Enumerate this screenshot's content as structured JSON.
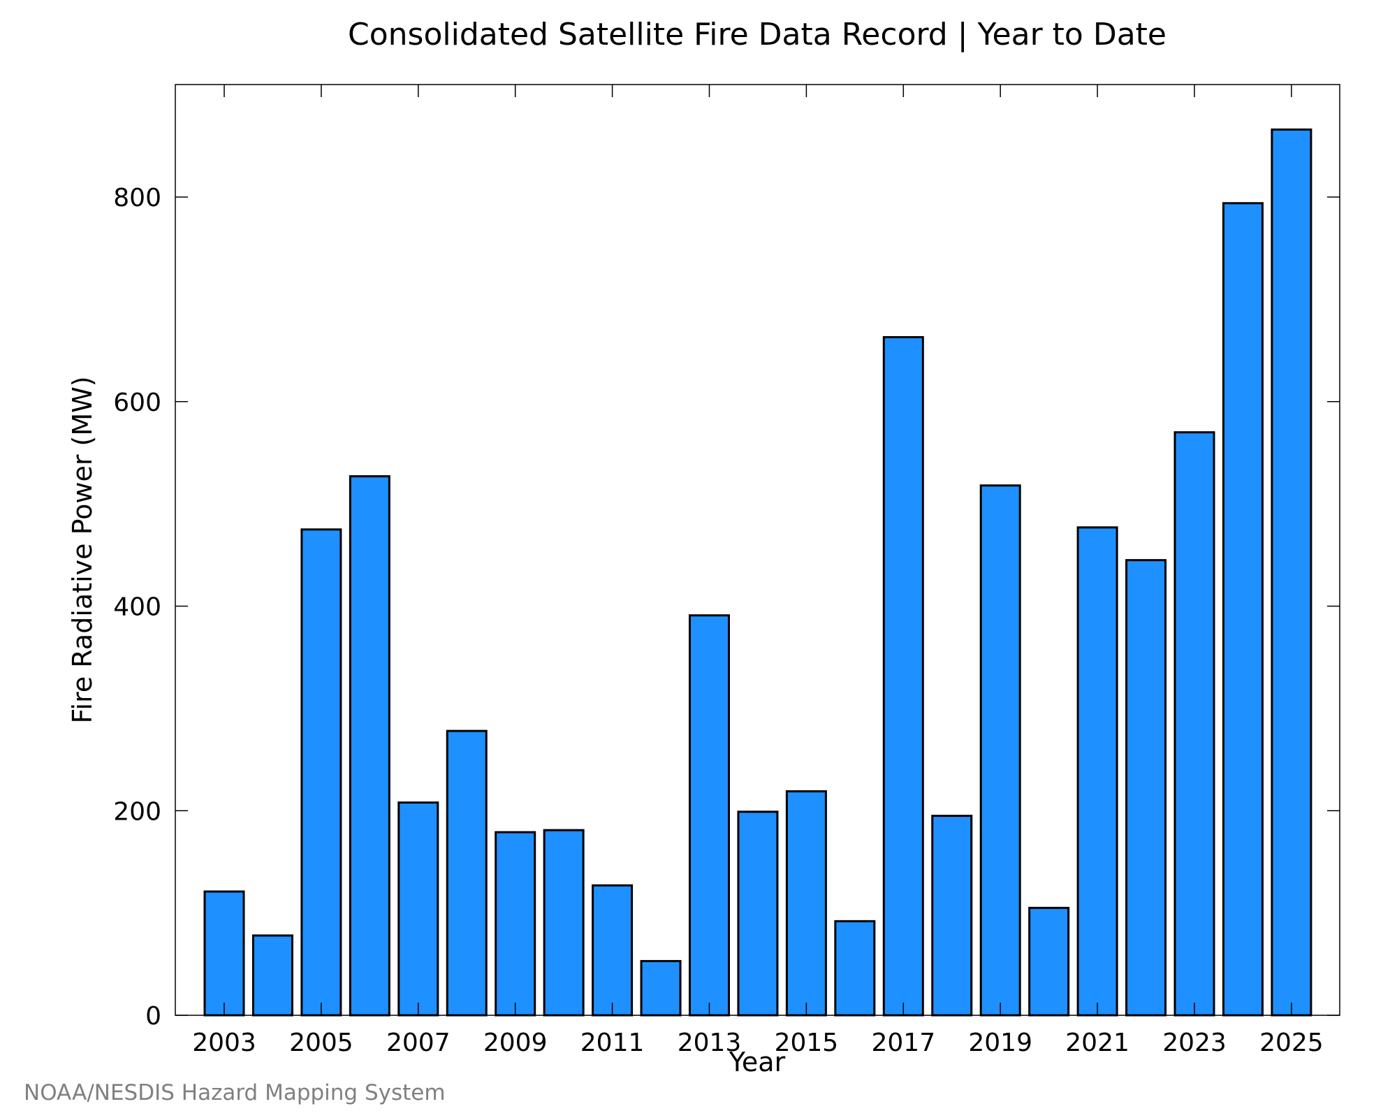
{
  "chart_data": {
    "type": "bar",
    "title": "Consolidated Satellite Fire Data Record | Year to Date",
    "xlabel": "Year",
    "ylabel": "Fire Radiative Power (MW)",
    "categories": [
      "2003",
      "2004",
      "2005",
      "2006",
      "2007",
      "2008",
      "2009",
      "2010",
      "2011",
      "2012",
      "2013",
      "2014",
      "2015",
      "2016",
      "2017",
      "2018",
      "2019",
      "2020",
      "2021",
      "2022",
      "2023",
      "2024",
      "2025"
    ],
    "values": [
      121,
      78,
      475,
      527,
      208,
      278,
      179,
      181,
      127,
      53,
      391,
      199,
      219,
      92,
      663,
      195,
      518,
      105,
      477,
      445,
      570,
      794,
      866
    ],
    "x_tick_labels": [
      "2003",
      "2005",
      "2007",
      "2009",
      "2011",
      "2013",
      "2015",
      "2017",
      "2019",
      "2021",
      "2023",
      "2025"
    ],
    "y_ticks": [
      0,
      200,
      400,
      600,
      800
    ],
    "ylim": [
      0,
      910
    ],
    "grid": false,
    "legend": "none",
    "bar_color": "#1e90ff",
    "bar_edge_color": "#000000"
  },
  "footer": {
    "credit": "NOAA/NESDIS Hazard Mapping System"
  }
}
